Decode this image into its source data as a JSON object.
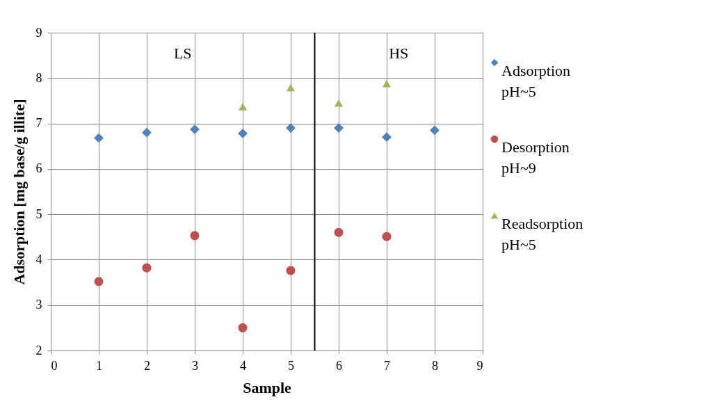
{
  "chart_data": {
    "type": "scatter",
    "xlabel": "Sample",
    "ylabel": "Adsorption [mg base/g illite]",
    "x": [
      1,
      2,
      3,
      4,
      5,
      6,
      7,
      8
    ],
    "series": [
      {
        "name": "Adsorption pH~5",
        "color": "#4f81bd",
        "marker": "diamond",
        "values": [
          6.68,
          6.8,
          6.87,
          6.78,
          6.9,
          6.9,
          6.7,
          6.85
        ]
      },
      {
        "name": "Desorption pH~9",
        "color": "#c0504d",
        "marker": "circle",
        "values": [
          3.52,
          3.82,
          4.53,
          2.5,
          3.76,
          4.6,
          4.51,
          null
        ]
      },
      {
        "name": "Readsorption pH~5",
        "color": "#9bbb59",
        "marker": "triangle",
        "values": [
          null,
          null,
          null,
          7.37,
          7.79,
          7.45,
          7.88,
          null
        ]
      }
    ],
    "xlim": [
      0,
      9
    ],
    "xticks": [
      0,
      1,
      2,
      3,
      4,
      5,
      6,
      7,
      8,
      9
    ],
    "ylim": [
      2,
      9
    ],
    "yticks": [
      2,
      3,
      4,
      5,
      6,
      7,
      8,
      9
    ],
    "grid": true,
    "legend": "right",
    "ref_lines": [
      {
        "axis": "x",
        "value": 5.5,
        "color": "#000000"
      }
    ],
    "annotations": [
      "LS",
      "HS"
    ]
  }
}
